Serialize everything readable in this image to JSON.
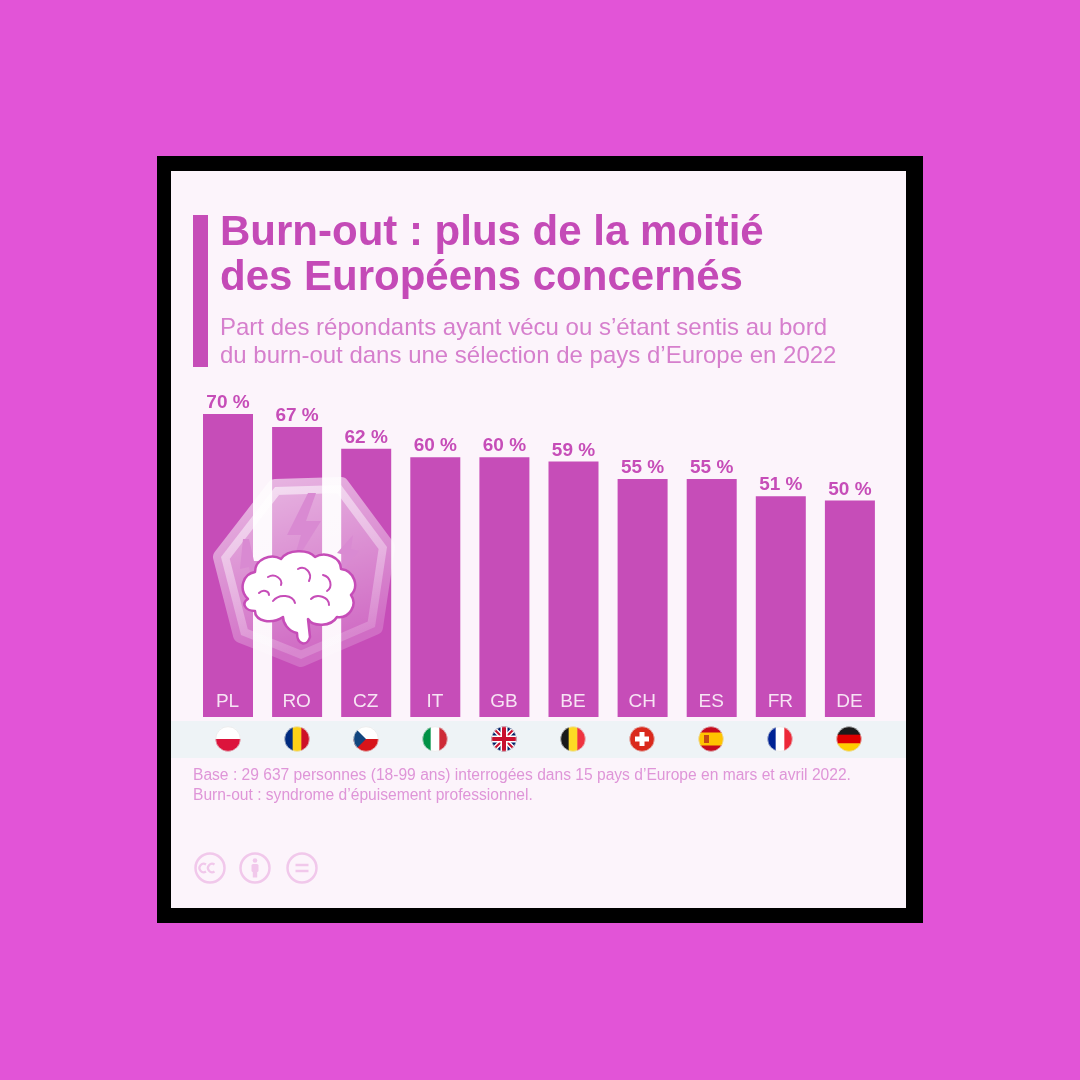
{
  "chart_data": {
    "type": "bar",
    "title": "Burn-out : plus de la moitié des Européens concernés",
    "subtitle": "Part des répondants ayant vécu ou s’étant sentis au bord du burn-out dans une sélection de pays d’Europe en 2022",
    "categories": [
      "PL",
      "RO",
      "CZ",
      "IT",
      "GB",
      "BE",
      "CH",
      "ES",
      "FR",
      "DE"
    ],
    "values": [
      70,
      67,
      62,
      60,
      60,
      59,
      55,
      55,
      51,
      50
    ],
    "value_labels": [
      "70 %",
      "67 %",
      "62 %",
      "60 %",
      "60 %",
      "59 %",
      "55 %",
      "55 %",
      "51 %",
      "50 %"
    ],
    "color": "#c64db8",
    "annotations": [
      "Base : 29 637 personnes (18-99 ans) interrogées dans 15 pays d’Europe en mars et avril 2022.",
      "Burn-out : syndrome d’épuisement professionnel."
    ]
  }
}
